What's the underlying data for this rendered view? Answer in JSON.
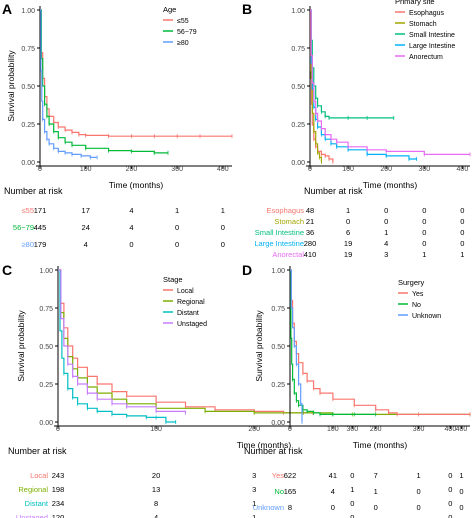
{
  "chart_data": [
    {
      "panel_label": "A",
      "type": "line",
      "xlabel": "Time (months)",
      "ylabel": "Survival probability",
      "xlim": [
        0,
        420
      ],
      "ylim": [
        0,
        1
      ],
      "xticks": [
        "0",
        "100",
        "200",
        "300",
        "400"
      ],
      "yticks": [
        "0.00",
        "0.25",
        "0.50",
        "0.75",
        "1.00"
      ],
      "legend_title": "Age",
      "legend_position": "top-right",
      "risk_title": "Number at risk",
      "risk_times": [
        0,
        100,
        200,
        300,
        400
      ],
      "series": [
        {
          "name": "≤55",
          "color": "#f8766d",
          "x": [
            0,
            3,
            6,
            10,
            15,
            20,
            30,
            40,
            55,
            70,
            85,
            100,
            150,
            200,
            250,
            300,
            350,
            420
          ],
          "y": [
            1.0,
            0.72,
            0.55,
            0.43,
            0.35,
            0.3,
            0.26,
            0.23,
            0.21,
            0.195,
            0.18,
            0.175,
            0.17,
            0.17,
            0.17,
            0.17,
            0.17,
            0.17
          ],
          "risk": [
            "171",
            "17",
            "4",
            "1",
            "1"
          ]
        },
        {
          "name": "56−79",
          "color": "#00ba38",
          "x": [
            0,
            3,
            6,
            10,
            15,
            20,
            30,
            40,
            55,
            70,
            100,
            150,
            200,
            250,
            280
          ],
          "y": [
            1.0,
            0.68,
            0.5,
            0.38,
            0.3,
            0.25,
            0.2,
            0.16,
            0.13,
            0.11,
            0.09,
            0.075,
            0.07,
            0.06,
            0.06
          ],
          "risk": [
            "445",
            "24",
            "4",
            "0",
            "0"
          ]
        },
        {
          "name": "≥80",
          "color": "#619cff",
          "x": [
            0,
            2,
            4,
            6,
            10,
            15,
            20,
            30,
            40,
            55,
            70,
            90,
            110,
            125
          ],
          "y": [
            1.0,
            0.6,
            0.4,
            0.28,
            0.2,
            0.15,
            0.12,
            0.09,
            0.07,
            0.06,
            0.05,
            0.04,
            0.03,
            0.03
          ],
          "risk": [
            "179",
            "4",
            "0",
            "0",
            "0"
          ]
        }
      ]
    },
    {
      "panel_label": "B",
      "type": "line",
      "xlabel": "Time (months)",
      "ylabel": "",
      "xlim": [
        0,
        420
      ],
      "ylim": [
        0,
        1
      ],
      "xticks": [
        "0",
        "100",
        "200",
        "300",
        "400"
      ],
      "yticks": [
        "0.00",
        "0.25",
        "0.50",
        "0.75",
        "1.00"
      ],
      "legend_title": "Primary site",
      "legend_position": "top-right",
      "risk_title": "Number at risk",
      "risk_times": [
        0,
        100,
        200,
        300,
        400
      ],
      "series": [
        {
          "name": "Esophagus",
          "color": "#f8766d",
          "x": [
            0,
            2,
            4,
            6,
            10,
            15,
            20,
            30,
            40,
            50,
            60
          ],
          "y": [
            1.0,
            0.6,
            0.38,
            0.25,
            0.15,
            0.1,
            0.07,
            0.05,
            0.04,
            0.02,
            0.0
          ],
          "risk": [
            "48",
            "1",
            "0",
            "0",
            "0"
          ]
        },
        {
          "name": "Stomach",
          "color": "#a3a500",
          "x": [
            0,
            3,
            6,
            10,
            15,
            20,
            25,
            30
          ],
          "y": [
            1.0,
            0.55,
            0.32,
            0.2,
            0.12,
            0.06,
            0.03,
            0.0
          ],
          "risk": [
            "21",
            "0",
            "0",
            "0",
            "0"
          ]
        },
        {
          "name": "Small Intestine",
          "color": "#00bf7d",
          "x": [
            0,
            3,
            6,
            10,
            15,
            20,
            30,
            40,
            50,
            100,
            150,
            220
          ],
          "y": [
            1.0,
            0.8,
            0.62,
            0.5,
            0.42,
            0.37,
            0.33,
            0.3,
            0.29,
            0.29,
            0.29,
            0.29
          ],
          "risk": [
            "36",
            "6",
            "1",
            "0",
            "0"
          ]
        },
        {
          "name": "Large Intestine",
          "color": "#00b0f6",
          "x": [
            0,
            3,
            6,
            10,
            15,
            20,
            30,
            40,
            55,
            70,
            100,
            150,
            200,
            260,
            280
          ],
          "y": [
            1.0,
            0.65,
            0.48,
            0.36,
            0.28,
            0.23,
            0.18,
            0.15,
            0.12,
            0.1,
            0.08,
            0.05,
            0.04,
            0.02,
            0.02
          ],
          "risk": [
            "280",
            "19",
            "4",
            "0",
            "0"
          ]
        },
        {
          "name": "Anorectum",
          "color": "#e76bf3",
          "x": [
            0,
            3,
            6,
            10,
            15,
            20,
            30,
            40,
            55,
            70,
            100,
            150,
            200,
            300,
            420
          ],
          "y": [
            1.0,
            0.7,
            0.52,
            0.4,
            0.32,
            0.27,
            0.22,
            0.18,
            0.15,
            0.13,
            0.1,
            0.08,
            0.07,
            0.05,
            0.05
          ],
          "risk": [
            "410",
            "19",
            "3",
            "1",
            "1"
          ]
        }
      ],
      "risk_labels": [
        "Esophagus",
        "Stomach",
        "Small Intestine",
        "Large Intestine",
        "Anorectal"
      ]
    },
    {
      "panel_label": "C",
      "type": "line",
      "xlabel": "Time (months)",
      "ylabel": "Survival probability",
      "xlim": [
        0,
        420
      ],
      "ylim": [
        0,
        1
      ],
      "xticks": [
        "0",
        "100",
        "200",
        "300",
        "400"
      ],
      "yticks": [
        "0.00",
        "0.25",
        "0.50",
        "0.75",
        "1.00"
      ],
      "legend_title": "Stage",
      "legend_position": "top-right",
      "risk_title": "Number at risk",
      "risk_times": [
        0,
        100,
        200,
        300,
        400
      ],
      "series": [
        {
          "name": "Local",
          "color": "#f8766d",
          "x": [
            0,
            3,
            6,
            10,
            15,
            20,
            30,
            40,
            55,
            70,
            100,
            130,
            160,
            200,
            230,
            260
          ],
          "y": [
            1.0,
            0.78,
            0.62,
            0.5,
            0.42,
            0.36,
            0.3,
            0.25,
            0.2,
            0.17,
            0.13,
            0.1,
            0.08,
            0.07,
            0.06,
            0.06
          ],
          "risk": [
            "243",
            "20",
            "3",
            "0",
            "0"
          ]
        },
        {
          "name": "Regional",
          "color": "#7cae00",
          "x": [
            0,
            3,
            6,
            10,
            15,
            20,
            30,
            40,
            55,
            70,
            100,
            150,
            200,
            250,
            280,
            300,
            420
          ],
          "y": [
            1.0,
            0.72,
            0.55,
            0.43,
            0.35,
            0.29,
            0.23,
            0.19,
            0.15,
            0.12,
            0.09,
            0.07,
            0.06,
            0.06,
            0.05,
            0.05,
            0.05
          ],
          "risk": [
            "198",
            "13",
            "3",
            "1",
            "0"
          ]
        },
        {
          "name": "Distant",
          "color": "#00bfc4",
          "x": [
            0,
            2,
            4,
            6,
            10,
            15,
            20,
            30,
            40,
            55,
            70,
            90,
            100,
            110,
            120
          ],
          "y": [
            1.0,
            0.6,
            0.42,
            0.32,
            0.22,
            0.16,
            0.12,
            0.09,
            0.07,
            0.05,
            0.04,
            0.03,
            0.03,
            0.0,
            0.0
          ],
          "risk": [
            "234",
            "8",
            "1",
            "0",
            "0"
          ]
        },
        {
          "name": "Unstaged",
          "color": "#c77cff",
          "x": [
            0,
            3,
            6,
            10,
            15,
            20,
            30,
            40,
            55,
            70,
            100,
            130
          ],
          "y": [
            1.0,
            0.68,
            0.5,
            0.38,
            0.3,
            0.25,
            0.19,
            0.15,
            0.12,
            0.1,
            0.07,
            0.06
          ],
          "risk": [
            "120",
            "4",
            "1",
            "0",
            "0"
          ]
        }
      ]
    },
    {
      "panel_label": "D",
      "type": "line",
      "xlabel": "Time (months)",
      "ylabel": "Survival probability",
      "xlim": [
        0,
        420
      ],
      "ylim": [
        0,
        1
      ],
      "xticks": [
        "0",
        "100",
        "200",
        "300",
        "400"
      ],
      "yticks": [
        "0.00",
        "0.25",
        "0.50",
        "0.75",
        "1.00"
      ],
      "legend_title": "Surgery",
      "legend_position": "top-right",
      "risk_title": "Number at risk",
      "risk_times": [
        0,
        100,
        200,
        300,
        400
      ],
      "series": [
        {
          "name": "Yes",
          "color": "#f8766d",
          "x": [
            0,
            3,
            6,
            10,
            15,
            20,
            30,
            40,
            55,
            70,
            100,
            150,
            200,
            230,
            250,
            300,
            420
          ],
          "y": [
            1.0,
            0.8,
            0.65,
            0.53,
            0.45,
            0.39,
            0.32,
            0.27,
            0.22,
            0.19,
            0.15,
            0.11,
            0.08,
            0.06,
            0.05,
            0.05,
            0.05
          ],
          "risk": [
            "622",
            "41",
            "7",
            "1",
            "1"
          ]
        },
        {
          "name": "No",
          "color": "#00ba38",
          "x": [
            0,
            2,
            4,
            6,
            10,
            15,
            20,
            30,
            40,
            55,
            70,
            100,
            150,
            200
          ],
          "y": [
            1.0,
            0.55,
            0.38,
            0.28,
            0.19,
            0.14,
            0.11,
            0.08,
            0.07,
            0.06,
            0.05,
            0.05,
            0.05,
            0.05
          ],
          "risk": [
            "165",
            "4",
            "1",
            "0",
            "0"
          ]
        },
        {
          "name": "Unknown",
          "color": "#619cff",
          "x": [
            0,
            3,
            6,
            10,
            15,
            20,
            25,
            28
          ],
          "y": [
            1.0,
            0.75,
            0.62,
            0.5,
            0.38,
            0.25,
            0.12,
            0.0
          ],
          "risk": [
            "8",
            "0",
            "0",
            "0",
            "0"
          ]
        }
      ]
    }
  ]
}
